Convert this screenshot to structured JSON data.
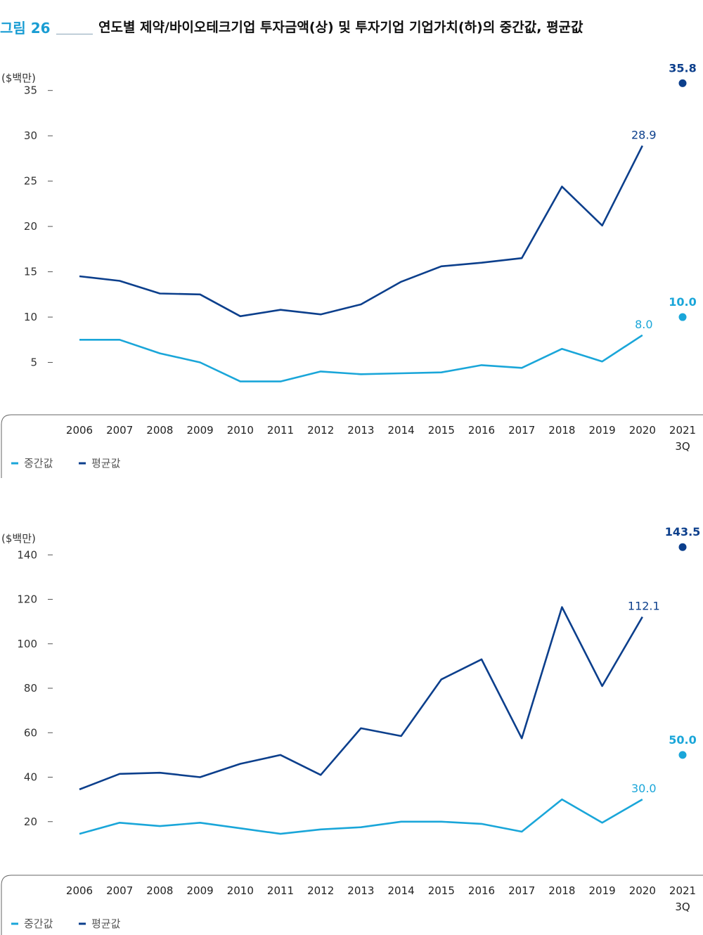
{
  "header": {
    "figure_label": "그림 26",
    "title": "연도별 제약/바이오테크기업 투자금액(상) 및 투자기업 기업가치(하)의 중간값, 평균값"
  },
  "colors": {
    "median": "#1aa6d9",
    "mean": "#0c3f8c",
    "axis": "#555555"
  },
  "chart_data": [
    {
      "type": "line",
      "unit_label": "($백만)",
      "categories": [
        "2006",
        "2007",
        "2008",
        "2009",
        "2010",
        "2011",
        "2012",
        "2013",
        "2014",
        "2015",
        "2016",
        "2017",
        "2018",
        "2019",
        "2020",
        "2021"
      ],
      "category_sublabels": {
        "2021": "3Q"
      },
      "y_ticks": [
        5,
        10,
        15,
        20,
        25,
        30,
        35
      ],
      "ylim": [
        0,
        38
      ],
      "series": [
        {
          "name": "중간값",
          "color": "#1aa6d9",
          "values": [
            7.5,
            7.5,
            6.0,
            5.0,
            2.9,
            2.9,
            4.0,
            3.7,
            3.8,
            3.9,
            4.7,
            4.4,
            6.5,
            5.1,
            8.0,
            null
          ],
          "highlight": {
            "x": "2021",
            "value": 10.0,
            "label": "10.0"
          },
          "end_label": "8.0"
        },
        {
          "name": "평균값",
          "color": "#0c3f8c",
          "values": [
            14.5,
            14.0,
            12.6,
            12.5,
            10.1,
            10.8,
            10.3,
            11.4,
            13.9,
            15.6,
            16.0,
            16.5,
            24.4,
            20.1,
            28.9,
            null
          ],
          "highlight": {
            "x": "2021",
            "value": 35.8,
            "label": "35.8"
          },
          "end_label": "28.9"
        }
      ],
      "legend": [
        {
          "label": "중간값",
          "color": "#1aa6d9"
        },
        {
          "label": "평균값",
          "color": "#0c3f8c"
        }
      ],
      "legend_position": "bottom-left",
      "grid": false
    },
    {
      "type": "line",
      "unit_label": "($백만)",
      "categories": [
        "2006",
        "2007",
        "2008",
        "2009",
        "2010",
        "2011",
        "2012",
        "2013",
        "2014",
        "2015",
        "2016",
        "2017",
        "2018",
        "2019",
        "2020",
        "2021"
      ],
      "category_sublabels": {
        "2021": "3Q"
      },
      "y_ticks": [
        20,
        40,
        60,
        80,
        100,
        120,
        140
      ],
      "ylim": [
        0,
        154
      ],
      "series": [
        {
          "name": "중간값",
          "color": "#1aa6d9",
          "values": [
            14.5,
            19.5,
            18.0,
            19.5,
            17.0,
            14.5,
            16.5,
            17.5,
            20.0,
            20.0,
            19.0,
            15.5,
            30.0,
            19.5,
            30.0,
            null
          ],
          "highlight": {
            "x": "2021",
            "value": 50.0,
            "label": "50.0"
          },
          "end_label": "30.0"
        },
        {
          "name": "평균값",
          "color": "#0c3f8c",
          "values": [
            34.5,
            41.5,
            42.0,
            40.0,
            46.0,
            50.0,
            41.0,
            62.0,
            58.5,
            84.0,
            93.0,
            57.5,
            116.5,
            81.0,
            112.1,
            null
          ],
          "highlight": {
            "x": "2021",
            "value": 143.5,
            "label": "143.5"
          },
          "end_label": "112.1"
        }
      ],
      "legend": [
        {
          "label": "중간값",
          "color": "#1aa6d9"
        },
        {
          "label": "평균값",
          "color": "#0c3f8c"
        }
      ],
      "legend_position": "bottom-left",
      "grid": false
    }
  ]
}
